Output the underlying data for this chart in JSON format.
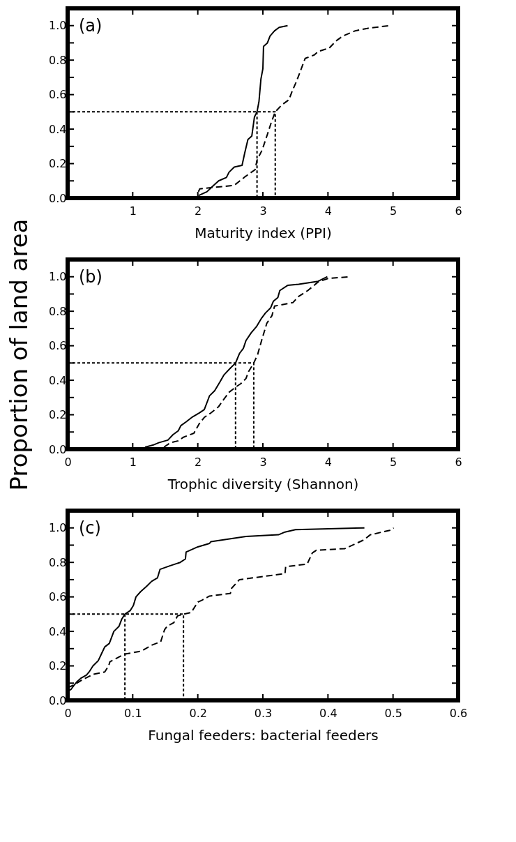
{
  "chart_data": [
    {
      "type": "line",
      "xlabel": "Maturity index (PPI)",
      "annotations": [
        "(a)"
      ],
      "grid": false,
      "xlim": [
        0,
        6
      ],
      "xticks": [
        {
          "value": 0,
          "label": null
        },
        1,
        2,
        3,
        4,
        5,
        6
      ],
      "ylim": [
        0,
        1.1
      ],
      "yticks": [
        {
          "value": 0,
          "label": "0.0"
        },
        {
          "value": 0.1,
          "label": null
        },
        {
          "value": 0.2,
          "label": "0.2"
        },
        {
          "value": 0.3,
          "label": null
        },
        {
          "value": 0.4,
          "label": "0.4"
        },
        {
          "value": 0.5,
          "label": null
        },
        {
          "value": 0.6,
          "label": "0.6"
        },
        {
          "value": 0.7,
          "label": null
        },
        {
          "value": 0.8,
          "label": "0.8"
        },
        {
          "value": 0.9,
          "label": null
        },
        {
          "value": 1.0,
          "label": "1.0"
        }
      ],
      "series": [
        {
          "color": "#000000",
          "line_style": "solid",
          "x": [
            2.01,
            2.14,
            2.22,
            2.32,
            2.44,
            2.48,
            2.56,
            2.68,
            2.72,
            2.77,
            2.83,
            2.87,
            2.91,
            2.94,
            2.97,
            3.0,
            3.01,
            3.07,
            3.11,
            3.18,
            3.25,
            3.38
          ],
          "values": [
            0.015,
            0.037,
            0.066,
            0.1,
            0.12,
            0.15,
            0.18,
            0.19,
            0.26,
            0.34,
            0.36,
            0.47,
            0.5,
            0.56,
            0.69,
            0.75,
            0.88,
            0.9,
            0.94,
            0.97,
            0.99,
            1.0
          ]
        },
        {
          "color": "#000000",
          "line_style": "dashed",
          "x": [
            2.01,
            2.03,
            2.56,
            2.73,
            2.88,
            2.91,
            2.99,
            3.07,
            3.13,
            3.19,
            3.29,
            3.4,
            3.45,
            3.52,
            3.65,
            3.79,
            3.85,
            4.02,
            4.12,
            4.23,
            4.42,
            4.62,
            4.95
          ],
          "values": [
            0.037,
            0.054,
            0.074,
            0.125,
            0.165,
            0.22,
            0.28,
            0.37,
            0.44,
            0.5,
            0.54,
            0.57,
            0.62,
            0.68,
            0.81,
            0.83,
            0.85,
            0.87,
            0.91,
            0.94,
            0.97,
            0.985,
            1.0
          ]
        },
        {
          "color": "#000000",
          "line_style": "dotted",
          "x": [
            0,
            3.19,
            3.19
          ],
          "values": [
            0.5,
            0.5,
            0
          ]
        },
        {
          "color": "#000000",
          "line_style": "dotted",
          "x": [
            2.91,
            2.91
          ],
          "values": [
            0.5,
            0
          ]
        }
      ]
    },
    {
      "type": "line",
      "xlabel": "Trophic diversity (Shannon)",
      "ylabel": "Proportion of land area",
      "annotations": [
        "(b)"
      ],
      "grid": false,
      "xlim": [
        0,
        6
      ],
      "xticks": [
        0,
        1,
        2,
        3,
        4,
        5,
        6
      ],
      "ylim": [
        0,
        1.1
      ],
      "yticks": [
        {
          "value": 0,
          "label": "0.0"
        },
        {
          "value": 0.1,
          "label": null
        },
        {
          "value": 0.2,
          "label": "0.2"
        },
        {
          "value": 0.3,
          "label": null
        },
        {
          "value": 0.4,
          "label": "0.4"
        },
        {
          "value": 0.5,
          "label": null
        },
        {
          "value": 0.6,
          "label": "0.6"
        },
        {
          "value": 0.7,
          "label": null
        },
        {
          "value": 0.8,
          "label": "0.8"
        },
        {
          "value": 0.9,
          "label": null
        },
        {
          "value": 1.0,
          "label": "1.0"
        }
      ],
      "series": [
        {
          "color": "#000000",
          "line_style": "solid",
          "x": [
            1.19,
            1.31,
            1.4,
            1.54,
            1.62,
            1.7,
            1.74,
            1.82,
            1.92,
            2.02,
            2.1,
            2.14,
            2.18,
            2.26,
            2.34,
            2.4,
            2.5,
            2.58,
            2.64,
            2.7,
            2.74,
            2.82,
            2.9,
            2.98,
            3.04,
            3.12,
            3.16,
            3.23,
            3.26,
            3.38,
            3.55,
            3.85,
            3.99
          ],
          "values": [
            0.012,
            0.024,
            0.038,
            0.053,
            0.085,
            0.107,
            0.137,
            0.159,
            0.188,
            0.21,
            0.23,
            0.27,
            0.31,
            0.34,
            0.39,
            0.43,
            0.47,
            0.5,
            0.555,
            0.585,
            0.63,
            0.675,
            0.71,
            0.76,
            0.79,
            0.82,
            0.857,
            0.88,
            0.92,
            0.95,
            0.956,
            0.974,
            1.0
          ]
        },
        {
          "color": "#000000",
          "line_style": "dashed",
          "x": [
            1.48,
            1.58,
            1.7,
            1.78,
            1.94,
            2.02,
            2.1,
            2.2,
            2.32,
            2.4,
            2.48,
            2.58,
            2.66,
            2.74,
            2.78,
            2.86,
            2.92,
            2.98,
            3.06,
            3.14,
            3.18,
            3.46,
            3.55,
            3.69,
            3.85,
            4.0,
            4.33
          ],
          "values": [
            0.012,
            0.038,
            0.049,
            0.07,
            0.093,
            0.147,
            0.185,
            0.21,
            0.247,
            0.29,
            0.33,
            0.36,
            0.38,
            0.41,
            0.45,
            0.5,
            0.55,
            0.63,
            0.73,
            0.775,
            0.83,
            0.85,
            0.886,
            0.92,
            0.97,
            0.99,
            1.0
          ]
        },
        {
          "color": "#000000",
          "line_style": "dotted",
          "x": [
            0,
            2.86,
            2.86
          ],
          "values": [
            0.5,
            0.5,
            0
          ]
        },
        {
          "color": "#000000",
          "line_style": "dotted",
          "x": [
            2.58,
            2.58
          ],
          "values": [
            0.5,
            0
          ]
        }
      ]
    },
    {
      "type": "line",
      "xlabel": "Fungal feeders: bacterial feeders",
      "annotations": [
        "(c)"
      ],
      "grid": false,
      "xlim": [
        0,
        0.6
      ],
      "xticks": [
        0,
        0.1,
        0.2,
        0.3,
        0.4,
        0.5,
        0.6
      ],
      "ylim": [
        0,
        1.1
      ],
      "yticks": [
        {
          "value": 0,
          "label": "0.0"
        },
        {
          "value": 0.1,
          "label": null
        },
        {
          "value": 0.2,
          "label": "0.2"
        },
        {
          "value": 0.3,
          "label": null
        },
        {
          "value": 0.4,
          "label": "0.4"
        },
        {
          "value": 0.5,
          "label": null
        },
        {
          "value": 0.6,
          "label": "0.6"
        },
        {
          "value": 0.7,
          "label": null
        },
        {
          "value": 0.8,
          "label": "0.8"
        },
        {
          "value": 0.9,
          "label": null
        },
        {
          "value": 1.0,
          "label": "1.0"
        }
      ],
      "series": [
        {
          "color": "#000000",
          "line_style": "solid",
          "x": [
            0,
            0.005,
            0.01,
            0.014,
            0.021,
            0.029,
            0.033,
            0.039,
            0.047,
            0.052,
            0.057,
            0.064,
            0.071,
            0.079,
            0.083,
            0.088,
            0.096,
            0.101,
            0.105,
            0.112,
            0.121,
            0.129,
            0.138,
            0.142,
            0.157,
            0.173,
            0.181,
            0.182,
            0.2,
            0.218,
            0.22,
            0.274,
            0.324,
            0.334,
            0.35,
            0.456
          ],
          "values": [
            0.053,
            0.063,
            0.088,
            0.107,
            0.13,
            0.147,
            0.165,
            0.2,
            0.23,
            0.27,
            0.31,
            0.33,
            0.4,
            0.43,
            0.47,
            0.5,
            0.52,
            0.55,
            0.6,
            0.63,
            0.66,
            0.69,
            0.71,
            0.76,
            0.78,
            0.8,
            0.82,
            0.86,
            0.89,
            0.91,
            0.92,
            0.95,
            0.96,
            0.976,
            0.99,
            1.0
          ]
        },
        {
          "color": "#000000",
          "line_style": "dashed",
          "x": [
            0,
            0.009,
            0.021,
            0.039,
            0.057,
            0.063,
            0.065,
            0.087,
            0.113,
            0.129,
            0.143,
            0.149,
            0.153,
            0.163,
            0.169,
            0.178,
            0.19,
            0.2,
            0.206,
            0.218,
            0.25,
            0.252,
            0.264,
            0.334,
            0.335,
            0.368,
            0.376,
            0.382,
            0.426,
            0.455,
            0.465,
            0.495,
            0.501
          ],
          "values": [
            0.074,
            0.088,
            0.116,
            0.151,
            0.165,
            0.2,
            0.224,
            0.268,
            0.285,
            0.32,
            0.34,
            0.41,
            0.43,
            0.45,
            0.49,
            0.5,
            0.51,
            0.57,
            0.58,
            0.605,
            0.62,
            0.65,
            0.7,
            0.735,
            0.775,
            0.79,
            0.855,
            0.87,
            0.88,
            0.93,
            0.96,
            0.986,
            1.0
          ]
        },
        {
          "color": "#000000",
          "line_style": "dotted",
          "x": [
            0,
            0.178,
            0.178
          ],
          "values": [
            0.5,
            0.5,
            0
          ]
        },
        {
          "color": "#000000",
          "line_style": "dotted",
          "x": [
            0.088,
            0.088
          ],
          "values": [
            0.5,
            0
          ]
        }
      ]
    }
  ]
}
